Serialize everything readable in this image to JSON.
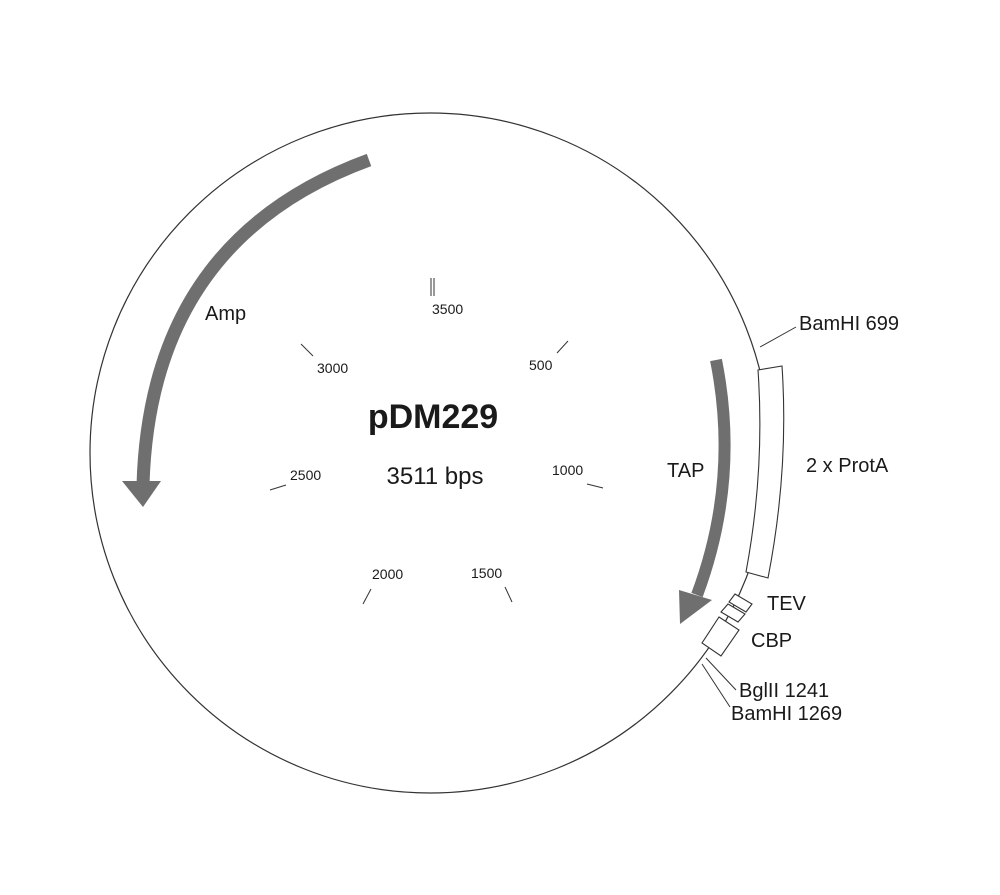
{
  "plasmid": {
    "name": "pDM229",
    "size_label": "3511 bps",
    "total_bp": 3511
  },
  "ticks": [
    {
      "bp": 3511,
      "label": "3500",
      "double": true
    },
    {
      "bp": 500,
      "label": "500"
    },
    {
      "bp": 1000,
      "label": "1000"
    },
    {
      "bp": 1500,
      "label": "1500"
    },
    {
      "bp": 2000,
      "label": "2000"
    },
    {
      "bp": 2500,
      "label": "2500"
    },
    {
      "bp": 3000,
      "label": "3000"
    }
  ],
  "features": [
    {
      "id": "amp",
      "label": "Amp",
      "type": "arrow",
      "direction": "counterclockwise",
      "color": "#6f6f6f"
    },
    {
      "id": "tap",
      "label": "TAP",
      "type": "arrow",
      "direction": "clockwise",
      "color": "#6f6f6f"
    },
    {
      "id": "protA",
      "label": "2 x ProtA",
      "type": "box"
    },
    {
      "id": "tev",
      "label": "TEV",
      "type": "box"
    },
    {
      "id": "cbp",
      "label": "CBP",
      "type": "box"
    }
  ],
  "sites": [
    {
      "label": "BamHI 699",
      "bp": 699
    },
    {
      "label": "BglII 1241",
      "bp": 1241
    },
    {
      "label": "BamHI 1269",
      "bp": 1269
    }
  ]
}
